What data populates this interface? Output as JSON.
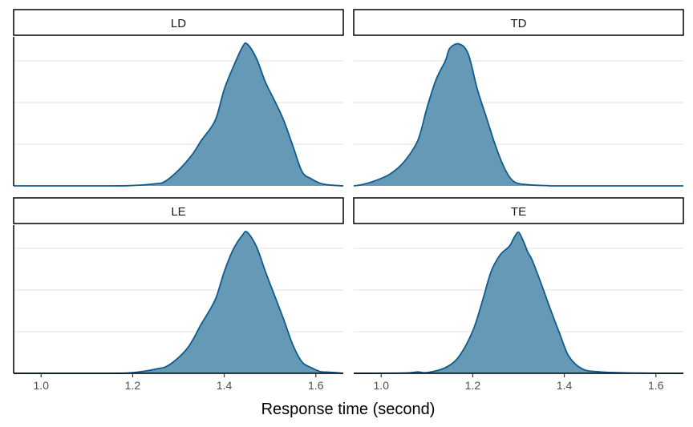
{
  "chart_data": {
    "type": "area",
    "subtype": "density",
    "xlabel": "Response time (second)",
    "ylabel": "",
    "xlim": [
      0.94,
      1.66
    ],
    "xticks": [
      1.0,
      1.2,
      1.4,
      1.6
    ],
    "xtick_labels": [
      "1.0",
      "1.2",
      "1.4",
      "1.6"
    ],
    "ylim": [
      0,
      1.05
    ],
    "y_gridlines": [
      0.3,
      0.6,
      0.9
    ],
    "grid": "horizontal major only",
    "colors": {
      "fill": "#6699b5",
      "line": "#0f5b8e",
      "grid": "#ebebeb",
      "strip_border": "#000000"
    },
    "facets": [
      {
        "label": "LD",
        "x": [
          0.94,
          1.15,
          1.2,
          1.25,
          1.27,
          1.3,
          1.33,
          1.35,
          1.38,
          1.4,
          1.42,
          1.44,
          1.45,
          1.47,
          1.49,
          1.51,
          1.53,
          1.55,
          1.57,
          1.59,
          1.61,
          1.63,
          1.66
        ],
        "y": [
          0.0,
          0.0,
          0.003,
          0.015,
          0.03,
          0.11,
          0.22,
          0.32,
          0.46,
          0.68,
          0.84,
          0.98,
          1.0,
          0.9,
          0.73,
          0.6,
          0.46,
          0.28,
          0.1,
          0.05,
          0.018,
          0.006,
          0.0
        ]
      },
      {
        "label": "TD",
        "x": [
          0.94,
          0.96,
          0.99,
          1.02,
          1.05,
          1.08,
          1.1,
          1.12,
          1.14,
          1.15,
          1.17,
          1.19,
          1.21,
          1.23,
          1.25,
          1.27,
          1.29,
          1.32,
          1.36,
          1.4,
          1.66
        ],
        "y": [
          0.0,
          0.01,
          0.04,
          0.085,
          0.17,
          0.32,
          0.55,
          0.75,
          0.88,
          0.97,
          1.0,
          0.93,
          0.68,
          0.48,
          0.28,
          0.12,
          0.03,
          0.008,
          0.002,
          0.0,
          0.0
        ]
      },
      {
        "label": "LE",
        "x": [
          0.94,
          1.15,
          1.2,
          1.25,
          1.28,
          1.32,
          1.35,
          1.38,
          1.4,
          1.42,
          1.44,
          1.45,
          1.47,
          1.49,
          1.51,
          1.53,
          1.55,
          1.57,
          1.59,
          1.61,
          1.63,
          1.66
        ],
        "y": [
          0.0,
          0.0,
          0.005,
          0.03,
          0.06,
          0.18,
          0.35,
          0.52,
          0.72,
          0.88,
          0.98,
          1.0,
          0.9,
          0.72,
          0.55,
          0.38,
          0.2,
          0.08,
          0.04,
          0.012,
          0.008,
          0.0
        ]
      },
      {
        "label": "TE",
        "x": [
          0.94,
          1.05,
          1.08,
          1.1,
          1.14,
          1.17,
          1.2,
          1.22,
          1.24,
          1.26,
          1.28,
          1.29,
          1.3,
          1.31,
          1.32,
          1.33,
          1.35,
          1.37,
          1.39,
          1.41,
          1.44,
          1.48,
          1.55,
          1.66
        ],
        "y": [
          0.0,
          0.002,
          0.01,
          0.005,
          0.04,
          0.12,
          0.3,
          0.5,
          0.72,
          0.84,
          0.9,
          0.96,
          1.0,
          0.94,
          0.86,
          0.8,
          0.63,
          0.45,
          0.28,
          0.12,
          0.03,
          0.01,
          0.002,
          0.0
        ]
      }
    ]
  }
}
